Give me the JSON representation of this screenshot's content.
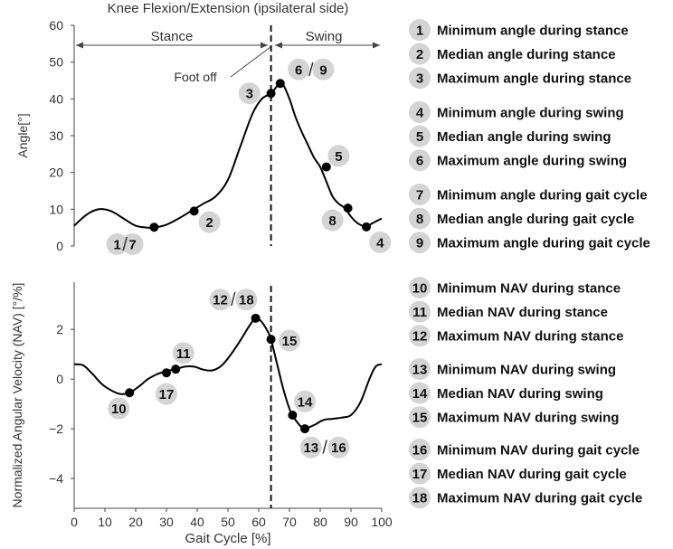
{
  "colors": {
    "badge": "#d4d4d4",
    "curve": "#000000",
    "axis": "#444444",
    "text": "#333333"
  },
  "chart_data": [
    {
      "type": "line",
      "title": "Knee Flexion/Extension (ipsilateral side)",
      "xlabel": "Gait Cycle [%]",
      "ylabel": "Angle[°]",
      "xlim": [
        0,
        100
      ],
      "ylim": [
        0,
        60
      ],
      "yticks": [
        "0",
        "10",
        "20",
        "30",
        "40",
        "50",
        "60"
      ],
      "toe_off_x": 64,
      "phase_labels": [
        "Stance",
        "Swing"
      ],
      "annotation": "Foot off",
      "series": [
        {
          "name": "knee angle",
          "x": [
            0,
            4,
            8,
            12,
            16,
            20,
            24,
            26,
            30,
            34,
            38,
            42,
            46,
            50,
            54,
            58,
            61,
            64,
            66,
            67,
            68,
            70,
            72,
            74,
            76,
            78,
            80,
            82,
            84,
            86,
            88,
            90,
            92,
            94,
            95,
            97,
            100
          ],
          "y": [
            5.5,
            8.5,
            10,
            9.5,
            7.5,
            5.5,
            5,
            5,
            5.8,
            7.5,
            9.5,
            11.5,
            13.5,
            18,
            27,
            36,
            40,
            41.5,
            43.5,
            44.2,
            43.8,
            40,
            35,
            31,
            27.5,
            24,
            21.5,
            17.5,
            13.5,
            11.5,
            10.3,
            8,
            6.3,
            5.4,
            5.2,
            6.2,
            7.5
          ]
        }
      ],
      "markers": [
        {
          "x": 26,
          "y": 5.1
        },
        {
          "x": 39,
          "y": 9.5
        },
        {
          "x": 64,
          "y": 41.5
        },
        {
          "x": 67,
          "y": 44.2
        },
        {
          "x": 82,
          "y": 21.5
        },
        {
          "x": 89,
          "y": 10.3
        },
        {
          "x": 95,
          "y": 5.2
        }
      ],
      "badges": [
        {
          "label": "1",
          "x": 14,
          "y": 0.5
        },
        {
          "label": "7",
          "x": 19,
          "y": 0.5
        },
        {
          "label": "2",
          "x": 44,
          "y": 6.5
        },
        {
          "label": "3",
          "x": 57,
          "y": 41.5
        },
        {
          "label": "6",
          "x": 73,
          "y": 48
        },
        {
          "label": "9",
          "x": 81,
          "y": 48
        },
        {
          "label": "5",
          "x": 86,
          "y": 24.5
        },
        {
          "label": "8",
          "x": 84,
          "y": 7
        },
        {
          "label": "4",
          "x": 99.5,
          "y": 1
        }
      ],
      "badge_separators": [
        {
          "x": 16.5,
          "y": 0.5
        },
        {
          "x": 77,
          "y": 48
        }
      ]
    },
    {
      "type": "line",
      "title": "",
      "xlabel": "Gait Cycle [%]",
      "ylabel": "Normalized Angular Velocity (NAV) [°/%]",
      "xlim": [
        0,
        100
      ],
      "ylim": [
        -5.2,
        3.9
      ],
      "yticks": [
        "2",
        "0",
        "−2",
        "−4"
      ],
      "xticks": [
        "0",
        "10",
        "20",
        "30",
        "40",
        "50",
        "60",
        "70",
        "80",
        "90",
        "100"
      ],
      "toe_off_x": 64,
      "series": [
        {
          "name": "NAV",
          "x": [
            0,
            3,
            6,
            9,
            12,
            15,
            18,
            21,
            24,
            27,
            29,
            30,
            33,
            36,
            39,
            42,
            45,
            48,
            51,
            54,
            57,
            59,
            61,
            63,
            64,
            66,
            68,
            70,
            71,
            72,
            74,
            75,
            78,
            81,
            84,
            87,
            90,
            93,
            96,
            98,
            100
          ],
          "y": [
            0.6,
            0.55,
            0.2,
            -0.2,
            -0.45,
            -0.6,
            -0.55,
            -0.3,
            0.0,
            0.2,
            0.28,
            0.33,
            0.4,
            0.5,
            0.5,
            0.38,
            0.35,
            0.55,
            1.0,
            1.55,
            2.15,
            2.45,
            2.3,
            1.9,
            1.6,
            0.6,
            -0.4,
            -1.2,
            -1.45,
            -1.65,
            -1.95,
            -2.0,
            -1.85,
            -1.65,
            -1.6,
            -1.55,
            -1.45,
            -0.95,
            0.0,
            0.5,
            0.6
          ]
        }
      ],
      "markers": [
        {
          "x": 18,
          "y": -0.55
        },
        {
          "x": 30,
          "y": 0.25
        },
        {
          "x": 33,
          "y": 0.4
        },
        {
          "x": 59,
          "y": 2.45
        },
        {
          "x": 64,
          "y": 1.6
        },
        {
          "x": 71,
          "y": -1.45
        },
        {
          "x": 75,
          "y": -2.0
        }
      ],
      "badges": [
        {
          "label": "10",
          "x": 14.5,
          "y": -1.18
        },
        {
          "label": "17",
          "x": 30,
          "y": -0.6
        },
        {
          "label": "11",
          "x": 35.5,
          "y": 1.05
        },
        {
          "label": "12",
          "x": 47.5,
          "y": 3.2
        },
        {
          "label": "18",
          "x": 56,
          "y": 3.2
        },
        {
          "label": "15",
          "x": 70,
          "y": 1.55
        },
        {
          "label": "14",
          "x": 75,
          "y": -0.9
        },
        {
          "label": "13",
          "x": 77,
          "y": -2.75
        },
        {
          "label": "16",
          "x": 86,
          "y": -2.75
        }
      ],
      "badge_separators": [
        {
          "x": 51.7,
          "y": 3.2
        },
        {
          "x": 81.5,
          "y": -2.75
        }
      ]
    }
  ],
  "legend": [
    [
      {
        "num": "1",
        "text": "Minimum angle during stance"
      },
      {
        "num": "2",
        "text": "Median angle during stance"
      },
      {
        "num": "3",
        "text": "Maximum angle during stance"
      }
    ],
    [
      {
        "num": "4",
        "text": "Minimum angle during swing"
      },
      {
        "num": "5",
        "text": "Median angle during swing"
      },
      {
        "num": "6",
        "text": "Maximum angle during swing"
      }
    ],
    [
      {
        "num": "7",
        "text": "Minimum angle during gait cycle"
      },
      {
        "num": "8",
        "text": "Median angle during gait cycle"
      },
      {
        "num": "9",
        "text": "Maximum angle during gait cycle"
      }
    ],
    [
      {
        "num": "10",
        "text": "Minimum NAV during stance"
      },
      {
        "num": "11",
        "text": "Median NAV during stance"
      },
      {
        "num": "12",
        "text": "Maximum NAV during stance"
      }
    ],
    [
      {
        "num": "13",
        "text": "Minimum NAV during swing"
      },
      {
        "num": "14",
        "text": "Median NAV during swing"
      },
      {
        "num": "15",
        "text": "Maximum NAV during swing"
      }
    ],
    [
      {
        "num": "16",
        "text": "Minimum NAV during gait cycle"
      },
      {
        "num": "17",
        "text": "Median NAV during gait cycle"
      },
      {
        "num": "18",
        "text": "Maximum NAV during gait cycle"
      }
    ]
  ]
}
